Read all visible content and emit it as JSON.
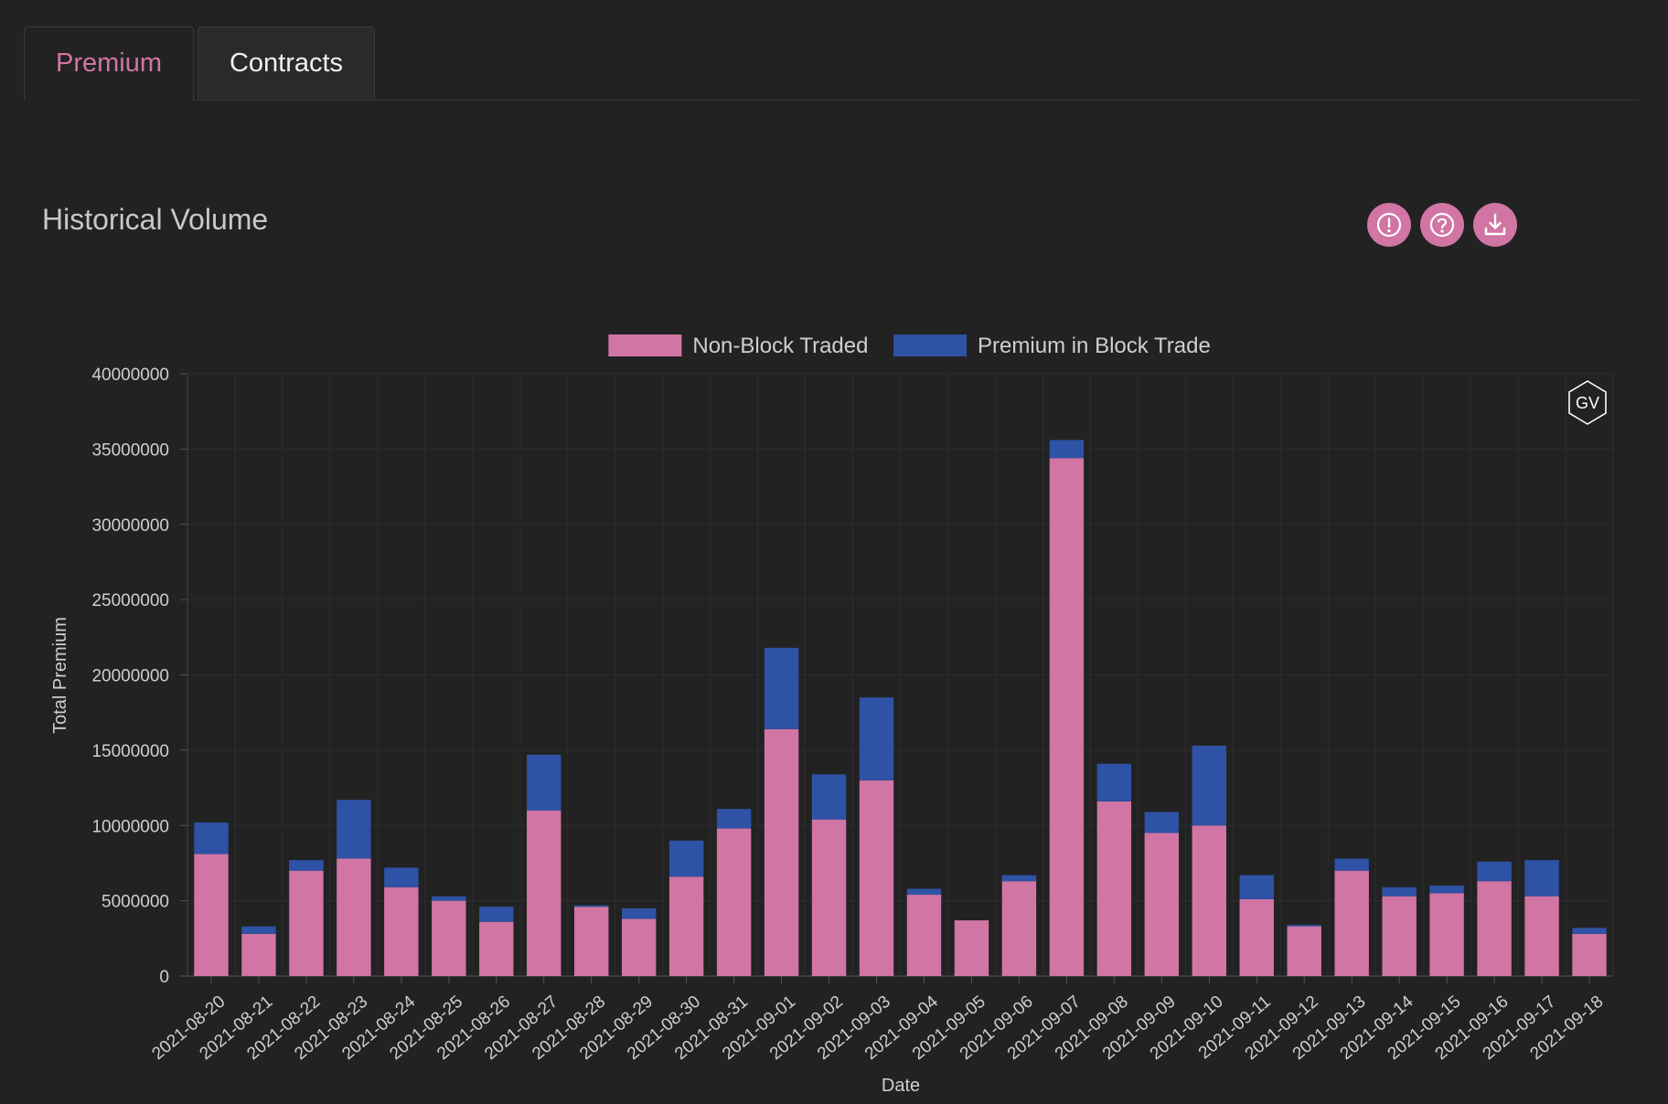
{
  "tabs": [
    {
      "label": "Premium",
      "active": true
    },
    {
      "label": "Contracts",
      "active": false
    }
  ],
  "section": {
    "title": "Historical Volume"
  },
  "actions": [
    {
      "name": "info-icon"
    },
    {
      "name": "help-icon"
    },
    {
      "name": "download-icon"
    }
  ],
  "colors": {
    "accent": "#d175a4",
    "non_block": "#d175a4",
    "block": "#2e52a5",
    "background": "#222222"
  },
  "watermark": "GV",
  "chart_data": {
    "type": "bar",
    "stacked": true,
    "xlabel": "Date",
    "ylabel": "Total Premium",
    "ylim": [
      0,
      40000000
    ],
    "yticks": [
      0,
      5000000,
      10000000,
      15000000,
      20000000,
      25000000,
      30000000,
      35000000,
      40000000
    ],
    "legend_position": "top-center",
    "grid": true,
    "categories": [
      "2021-08-20",
      "2021-08-21",
      "2021-08-22",
      "2021-08-23",
      "2021-08-24",
      "2021-08-25",
      "2021-08-26",
      "2021-08-27",
      "2021-08-28",
      "2021-08-29",
      "2021-08-30",
      "2021-08-31",
      "2021-09-01",
      "2021-09-02",
      "2021-09-03",
      "2021-09-04",
      "2021-09-05",
      "2021-09-06",
      "2021-09-07",
      "2021-09-08",
      "2021-09-09",
      "2021-09-10",
      "2021-09-11",
      "2021-09-12",
      "2021-09-13",
      "2021-09-14",
      "2021-09-15",
      "2021-09-16",
      "2021-09-17",
      "2021-09-18"
    ],
    "series": [
      {
        "name": "Non-Block Traded",
        "color": "#d175a4",
        "values": [
          8100000,
          2800000,
          7000000,
          7800000,
          5900000,
          5000000,
          3600000,
          11000000,
          4600000,
          3800000,
          6600000,
          9800000,
          16400000,
          10400000,
          13000000,
          5400000,
          3700000,
          6300000,
          34400000,
          11600000,
          9500000,
          10000000,
          5100000,
          3300000,
          7000000,
          5300000,
          5500000,
          6300000,
          5300000,
          2800000
        ]
      },
      {
        "name": "Premium in Block Trade",
        "color": "#2e52a5",
        "values": [
          2100000,
          500000,
          700000,
          3900000,
          1300000,
          300000,
          1000000,
          3700000,
          100000,
          700000,
          2400000,
          1300000,
          5400000,
          3000000,
          5500000,
          400000,
          0,
          400000,
          1200000,
          2500000,
          1400000,
          5300000,
          1600000,
          100000,
          800000,
          600000,
          500000,
          1300000,
          2400000,
          400000
        ]
      }
    ]
  }
}
